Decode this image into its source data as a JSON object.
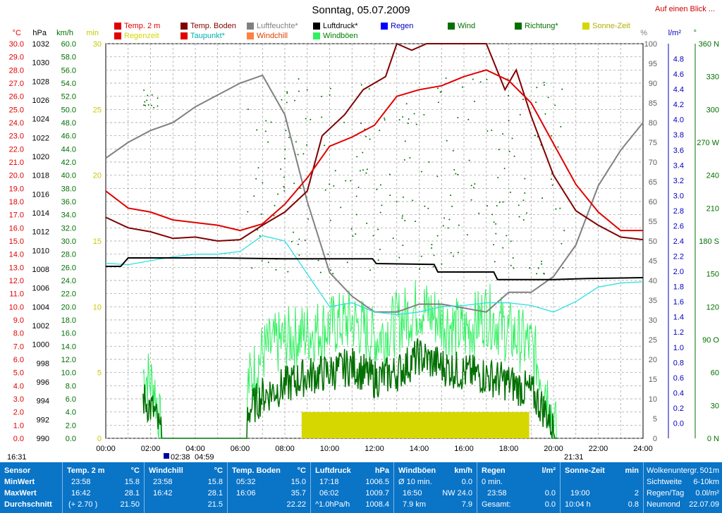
{
  "title": "Sonntag, 05.07.2009",
  "link": "Auf einen Blick ...",
  "colors": {
    "temp": "#e00000",
    "boden": "#800000",
    "feuchte": "#808080",
    "druck": "#000000",
    "regen": "#0000ff",
    "wind": "#007000",
    "richtung": "#007000",
    "sonne": "#d6d600",
    "regenzeit": "#f0f000",
    "taupunkt": "#30e0e0",
    "windchill": "#ff8040",
    "boeen": "#30f060"
  },
  "legend": [
    {
      "label": "Temp. 2 m",
      "color": "#e00000",
      "text": "#e00000"
    },
    {
      "label": "Regenzeit",
      "color": "#e00000",
      "text": "#d6d600"
    },
    {
      "label": "Temp. Boden",
      "color": "#800000",
      "text": "#800000"
    },
    {
      "label": "Taupunkt*",
      "color": "#e00000",
      "text": "#00b0b0"
    },
    {
      "label": "Luftfeuchte*",
      "color": "#808080",
      "text": "#808080"
    },
    {
      "label": "Windchill",
      "color": "#ff8040",
      "text": "#e04000"
    },
    {
      "label": "Luftdruck*",
      "color": "#000000",
      "text": "#000000"
    },
    {
      "label": "Windböen",
      "color": "#30f060",
      "text": "#008000"
    },
    {
      "label": "Regen",
      "color": "#0000ff",
      "text": "#0000c0"
    },
    {
      "label": "Wind",
      "color": "#007000",
      "text": "#007000"
    },
    {
      "label": "Richtung*",
      "color": "#007000",
      "text": "#007000"
    },
    {
      "label": "Sonne-Zeit",
      "color": "#d6d600",
      "text": "#b0b000"
    }
  ],
  "axes": {
    "temp_unit": "°C",
    "hpa_unit": "hPa",
    "kmh_unit": "km/h",
    "min_unit": "min",
    "pct_unit": "%",
    "rain_unit": "l/m²",
    "dir_unit": "°",
    "temp_ticks": [
      "30.0",
      "29.0",
      "28.0",
      "27.0",
      "26.0",
      "25.0",
      "24.0",
      "23.0",
      "22.0",
      "21.0",
      "20.0",
      "19.0",
      "18.0",
      "17.0",
      "16.0",
      "15.0",
      "14.0",
      "13.0",
      "12.0",
      "11.0",
      "10.0",
      "9.0",
      "8.0",
      "7.0",
      "6.0",
      "5.0",
      "4.0",
      "3.0",
      "2.0",
      "1.0",
      "0.0"
    ],
    "hpa_ticks": [
      "1032",
      "1030",
      "1028",
      "1026",
      "1024",
      "1022",
      "1020",
      "1018",
      "1016",
      "1014",
      "1012",
      "1010",
      "1008",
      "1006",
      "1004",
      "1002",
      "1000",
      "998",
      "996",
      "994",
      "992",
      "990"
    ],
    "kmh_ticks": [
      "60.0",
      "58.0",
      "56.0",
      "54.0",
      "52.0",
      "50.0",
      "48.0",
      "46.0",
      "44.0",
      "42.0",
      "40.0",
      "38.0",
      "36.0",
      "34.0",
      "32.0",
      "30.0",
      "28.0",
      "26.0",
      "24.0",
      "22.0",
      "20.0",
      "18.0",
      "16.0",
      "14.0",
      "12.0",
      "10.0",
      "8.0",
      "6.0",
      "4.0",
      "2.0",
      "0.0"
    ],
    "min_ticks": [
      "30",
      "25",
      "20",
      "15",
      "10",
      "5",
      "0"
    ],
    "pct_ticks": [
      "100",
      "95",
      "90",
      "85",
      "80",
      "75",
      "70",
      "65",
      "60",
      "55",
      "50",
      "45",
      "40",
      "35",
      "30",
      "25",
      "20",
      "15",
      "10",
      "5",
      "0"
    ],
    "rain_ticks": [
      "4.8",
      "4.6",
      "4.4",
      "4.2",
      "4.0",
      "3.8",
      "3.6",
      "3.4",
      "3.2",
      "3.0",
      "2.8",
      "2.6",
      "2.4",
      "2.2",
      "2.0",
      "1.8",
      "1.6",
      "1.4",
      "1.2",
      "1.0",
      "0.8",
      "0.6",
      "0.4",
      "0.2",
      "0.0"
    ],
    "dir_ticks": [
      "360 N",
      "330",
      "300",
      "270 W",
      "240",
      "210",
      "180 S",
      "150",
      "120",
      "90 O",
      "60",
      "30",
      "0 N"
    ],
    "time_ticks": [
      "00:00",
      "02:00",
      "04:00",
      "06:00",
      "08:00",
      "10:00",
      "12:00",
      "14:00",
      "16:00",
      "18:00",
      "20:00",
      "22:00",
      "24:00"
    ],
    "sunrise_markers": [
      "02:38",
      "04:59"
    ],
    "left_time": "16:31",
    "right_time": "21:31"
  },
  "chart_data": {
    "type": "line",
    "x_range": [
      "00:00",
      "24:00"
    ],
    "temp_range": [
      0,
      30
    ],
    "hpa_range": [
      990,
      1032
    ],
    "humidity_range": [
      0,
      100
    ],
    "sun_minutes_range": [
      0,
      30
    ],
    "series": [
      {
        "name": "Temp. 2 m",
        "unit": "°C",
        "x": [
          "00:00",
          "01:00",
          "02:00",
          "03:00",
          "04:00",
          "05:00",
          "06:00",
          "07:00",
          "08:00",
          "09:00",
          "10:00",
          "11:00",
          "12:00",
          "13:00",
          "14:00",
          "15:00",
          "16:00",
          "17:00",
          "18:00",
          "19:00",
          "20:00",
          "21:00",
          "22:00",
          "23:00",
          "24:00"
        ],
        "values": [
          18.8,
          17.5,
          17.2,
          16.6,
          16.4,
          16.2,
          15.8,
          16.3,
          17.8,
          19.8,
          22.2,
          22.9,
          23.8,
          26.0,
          26.5,
          26.8,
          27.5,
          28.0,
          27.2,
          25.5,
          22.4,
          19.3,
          17.2,
          15.8,
          15.8
        ]
      },
      {
        "name": "Temp. Boden",
        "unit": "°C",
        "x": [
          "00:00",
          "01:00",
          "02:00",
          "03:00",
          "04:00",
          "05:00",
          "06:00",
          "07:00",
          "08:00",
          "09:00",
          "09:40",
          "10:40",
          "11:30",
          "12:30",
          "13:00",
          "13:40",
          "14:20",
          "15:00",
          "17:00",
          "17:50",
          "18:20",
          "19:00",
          "20:00",
          "21:00",
          "22:00",
          "23:00",
          "24:00"
        ],
        "values": [
          16.8,
          16.0,
          15.7,
          15.2,
          15.3,
          15.0,
          15.1,
          16.2,
          17.2,
          18.8,
          23.0,
          24.6,
          26.5,
          27.5,
          30.0,
          29.5,
          30.0,
          30.5,
          30.0,
          26.5,
          28.0,
          24.5,
          20.0,
          17.3,
          16.2,
          15.3,
          15.1
        ]
      },
      {
        "name": "Taupunkt*",
        "unit": "°C",
        "x": [
          "00:00",
          "01:00",
          "02:00",
          "03:00",
          "04:00",
          "05:00",
          "06:00",
          "07:00",
          "08:00",
          "09:00",
          "10:00",
          "11:00",
          "12:00",
          "13:00",
          "14:00",
          "15:00",
          "16:00",
          "17:00",
          "18:00",
          "19:00",
          "20:00",
          "21:00",
          "22:00",
          "23:00",
          "24:00"
        ],
        "values": [
          13.3,
          13.2,
          13.5,
          13.8,
          14.0,
          14.0,
          14.2,
          15.4,
          15.0,
          12.5,
          10.0,
          10.3,
          9.6,
          9.4,
          9.6,
          10.0,
          10.1,
          10.3,
          10.3,
          10.1,
          9.6,
          10.4,
          11.5,
          11.8,
          11.9
        ]
      },
      {
        "name": "Luftfeuchte*",
        "unit": "%",
        "x": [
          "00:00",
          "01:00",
          "02:00",
          "03:00",
          "04:00",
          "05:00",
          "06:00",
          "07:00",
          "08:00",
          "09:00",
          "10:00",
          "11:00",
          "12:00",
          "13:00",
          "14:00",
          "15:00",
          "16:00",
          "17:00",
          "18:00",
          "19:00",
          "20:00",
          "21:00",
          "22:00",
          "23:00",
          "24:00"
        ],
        "values": [
          71,
          75,
          78,
          80,
          84,
          87,
          90,
          92,
          82,
          60,
          42,
          36,
          32,
          32,
          34,
          34,
          33,
          32,
          37,
          37,
          41,
          49,
          64,
          73,
          80
        ]
      },
      {
        "name": "Luftdruck*",
        "unit": "hPa",
        "x": [
          "00:00",
          "00:40",
          "01:00",
          "05:00",
          "08:00",
          "11:55",
          "12:05",
          "14:40",
          "14:50",
          "17:20",
          "17:30",
          "20:00",
          "21:30",
          "24:00"
        ],
        "values": [
          1008.3,
          1008.3,
          1009.2,
          1009.2,
          1009.1,
          1009.1,
          1008.6,
          1008.5,
          1007.7,
          1007.7,
          1006.9,
          1006.9,
          1007.0,
          1007.1
        ]
      },
      {
        "name": "Wind",
        "unit": "km/h",
        "x": [
          "01:40",
          "02:10",
          "02:30",
          "06:20",
          "07:00",
          "08:00",
          "09:00",
          "10:00",
          "11:00",
          "12:00",
          "13:00",
          "14:00",
          "15:00",
          "16:00",
          "17:00",
          "18:00",
          "19:00",
          "19:40",
          "20:10"
        ],
        "values": [
          6.0,
          4.0,
          0.0,
          4.0,
          6.5,
          8.0,
          9.5,
          10.0,
          11.0,
          9.0,
          10.0,
          12.5,
          11.0,
          10.0,
          9.5,
          8.5,
          7.0,
          4.0,
          0.0
        ]
      },
      {
        "name": "Windböen",
        "unit": "km/h",
        "x": [
          "01:40",
          "02:10",
          "02:30",
          "06:20",
          "07:00",
          "08:00",
          "09:00",
          "10:00",
          "11:00",
          "12:00",
          "13:00",
          "14:00",
          "15:00",
          "16:00",
          "17:00",
          "18:00",
          "19:00",
          "19:40",
          "20:10"
        ],
        "values": [
          10.0,
          8.0,
          0.0,
          8.0,
          13.0,
          15.0,
          16.0,
          17.0,
          18.0,
          15.0,
          17.5,
          20.0,
          18.0,
          16.0,
          19.0,
          16.0,
          14.0,
          8.0,
          0.0
        ]
      },
      {
        "name": "Sonne-Zeit",
        "unit": "min",
        "x_start": "08:45",
        "x_end": "18:55",
        "values": [
          2.0
        ]
      }
    ]
  },
  "footer": {
    "sensor": {
      "hd": "Sensor",
      "rows": [
        "MinWert",
        "MaxWert",
        "Durchschnitt"
      ]
    },
    "temp": {
      "hd": "Temp. 2 m",
      "unit": "°C",
      "min_t": "23:58",
      "min_v": "15.8",
      "max_t": "16:42",
      "max_v": "28.1",
      "avg_t": "(+ 2.70 )",
      "avg_v": "21.50"
    },
    "chill": {
      "hd": "Windchill",
      "unit": "°C",
      "min_t": "23:58",
      "min_v": "15.8",
      "max_t": "16:42",
      "max_v": "28.1",
      "avg_v": "21.5"
    },
    "boden": {
      "hd": "Temp. Boden",
      "unit": "°C",
      "min_t": "05:32",
      "min_v": "15.0",
      "max_t": "16:06",
      "max_v": "35.7",
      "avg_v": "22.22"
    },
    "druck": {
      "hd": "Luftdruck",
      "unit": "hPa",
      "min_t": "17:18",
      "min_v": "1006.5",
      "max_t": "06:02",
      "max_v": "1009.7",
      "avg_t": "^1.0hPa/h",
      "avg_v": "1008.4"
    },
    "boeen": {
      "hd": "Windböen",
      "unit": "km/h",
      "r1a": "Ø 10 min.",
      "r1b": "0.0",
      "r2a": "16:50",
      "r2b": "NW 24.0",
      "r3a": "7.9 km",
      "r3b": "7.9"
    },
    "regen": {
      "hd": "Regen",
      "unit": "l/m²",
      "r1a": "0 min.",
      "r2a": "23:58",
      "r2b": "0.0",
      "r3a": "Gesamt:",
      "r3b": "0.0"
    },
    "sonne": {
      "hd": "Sonne-Zeit",
      "unit": "min",
      "r2a": "19:00",
      "r2b": "2",
      "r3a": "10:04 h",
      "r3b": "0.8"
    },
    "extra": {
      "r0a": "Wolkenuntergr.",
      "r0b": "501m",
      "r1a": "Sichtweite",
      "r1b": "6-10km",
      "r2a": "Regen/Tag",
      "r2b": "0.0l/m²",
      "r3a": "Neumond",
      "r3b": "22.07.09"
    }
  }
}
